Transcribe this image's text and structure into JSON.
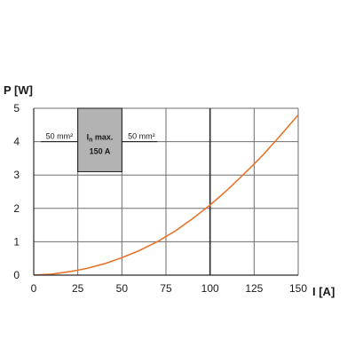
{
  "chart_data": {
    "type": "line",
    "title": "",
    "ylabel": "P [W]",
    "xlabel": "I [A]",
    "xlim": [
      0,
      150
    ],
    "ylim": [
      0,
      5
    ],
    "x_ticks": [
      0,
      25,
      50,
      75,
      100,
      125,
      150
    ],
    "y_ticks": [
      0,
      1,
      2,
      3,
      4,
      5
    ],
    "x_tick_labels": [
      "0",
      "25",
      "50",
      "75",
      "100",
      "125",
      "150"
    ],
    "y_tick_labels": [
      "0",
      "1",
      "2",
      "3",
      "4",
      "5"
    ],
    "grid": true,
    "series": [
      {
        "color": "#e8742a",
        "x": [
          0,
          10,
          20,
          25,
          30,
          40,
          50,
          60,
          70,
          75,
          80,
          90,
          100,
          110,
          120,
          125,
          130,
          140,
          150
        ],
        "y": [
          0,
          0.03,
          0.1,
          0.15,
          0.2,
          0.34,
          0.52,
          0.74,
          1.0,
          1.16,
          1.31,
          1.69,
          2.1,
          2.56,
          3.07,
          3.33,
          3.6,
          4.19,
          4.8
        ]
      }
    ],
    "annotation": {
      "box_x_range": [
        25,
        50
      ],
      "box_y_range": [
        3.1,
        5
      ],
      "box_color": "#b3b3b3",
      "line_y": 4,
      "left_label": "50 mm²",
      "right_label": "50 mm²",
      "box_line1": "I",
      "box_line1_sub": "n",
      "box_line1_suffix": "max.",
      "box_line2": "150 A"
    }
  }
}
